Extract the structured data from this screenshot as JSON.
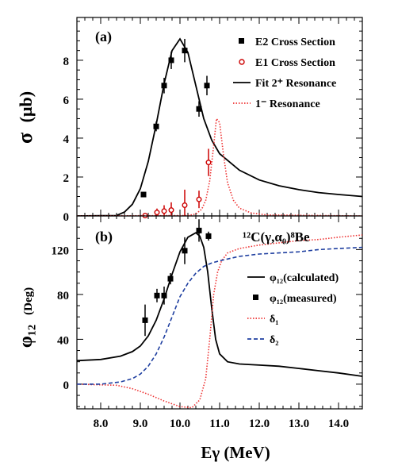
{
  "chart_data": [
    {
      "type": "scatter",
      "panel_label": "(a)",
      "xlabel": "Eγ (MeV)",
      "ylabel_main": "σ",
      "ylabel_unit": "(μb)",
      "xlim": [
        7.4,
        14.6
      ],
      "ylim": [
        0,
        10.2
      ],
      "xticks": [
        8.0,
        9.0,
        10.0,
        11.0,
        12.0,
        13.0,
        14.0
      ],
      "yticks": [
        0,
        2,
        4,
        6,
        8
      ],
      "legend_position": "top-right",
      "series": [
        {
          "name": "E2 Cross Section",
          "kind": "points",
          "marker": "square",
          "color": "#000000",
          "x": [
            9.08,
            9.4,
            9.6,
            9.78,
            10.12,
            10.48,
            10.68
          ],
          "y": [
            1.1,
            4.6,
            6.7,
            8.0,
            8.5,
            5.5,
            6.7
          ],
          "yerr": [
            0.1,
            0.25,
            0.4,
            0.45,
            0.6,
            0.4,
            0.5
          ]
        },
        {
          "name": "E1 Cross Section",
          "kind": "points",
          "marker": "open-circle",
          "color": "#cc0000",
          "x": [
            9.12,
            9.42,
            9.6,
            9.78,
            10.12,
            10.48,
            10.72
          ],
          "y": [
            0.02,
            0.18,
            0.25,
            0.3,
            0.55,
            0.85,
            2.75
          ],
          "yerr": [
            0.05,
            0.2,
            0.3,
            0.4,
            0.8,
            0.45,
            0.7
          ]
        },
        {
          "name": "Fit 2⁺ Resonance",
          "kind": "line",
          "style": "solid",
          "color": "#000000",
          "x": [
            7.4,
            8.4,
            8.6,
            8.8,
            9.0,
            9.2,
            9.4,
            9.6,
            9.8,
            10.0,
            10.2,
            10.4,
            10.6,
            10.8,
            11.0,
            11.5,
            12.0,
            12.5,
            13.0,
            13.5,
            14.0,
            14.6
          ],
          "y": [
            0,
            0.02,
            0.2,
            0.6,
            1.4,
            2.8,
            4.7,
            6.8,
            8.5,
            9.1,
            8.4,
            6.7,
            5.0,
            3.9,
            3.2,
            2.35,
            1.85,
            1.55,
            1.35,
            1.2,
            1.1,
            1.0
          ]
        },
        {
          "name": "1⁻ Resonance",
          "kind": "line",
          "style": "dotted",
          "color": "#ee3333",
          "x": [
            7.4,
            10.2,
            10.4,
            10.55,
            10.65,
            10.75,
            10.85,
            10.92,
            11.0,
            11.1,
            11.2,
            11.35,
            11.5,
            11.8,
            12.2,
            14.6
          ],
          "y": [
            0,
            0.02,
            0.1,
            0.35,
            0.8,
            1.8,
            3.6,
            5.0,
            4.8,
            3.1,
            1.7,
            0.8,
            0.4,
            0.15,
            0.05,
            0.0
          ]
        }
      ]
    },
    {
      "type": "scatter",
      "panel_label": "(b)",
      "annotation": "¹²C(γ,α₀)⁸Be",
      "xlabel": "Eγ (MeV)",
      "ylabel_main": "φ₁₂",
      "ylabel_unit": "(Deg)",
      "xlim": [
        7.4,
        14.6
      ],
      "ylim": [
        -22,
        150
      ],
      "xticks": [
        8.0,
        9.0,
        10.0,
        11.0,
        12.0,
        13.0,
        14.0
      ],
      "yticks": [
        0,
        40,
        80,
        120
      ],
      "legend_position": "right",
      "series": [
        {
          "name": "φ₁₂(calculated)",
          "kind": "line",
          "style": "solid",
          "color": "#000000",
          "x": [
            7.4,
            8.0,
            8.5,
            8.8,
            9.0,
            9.2,
            9.4,
            9.6,
            9.8,
            10.0,
            10.2,
            10.4,
            10.5,
            10.6,
            10.7,
            10.8,
            10.9,
            11.0,
            11.2,
            11.5,
            12.0,
            12.5,
            13.0,
            13.5,
            14.0,
            14.6
          ],
          "y": [
            21,
            22,
            25,
            29,
            34,
            43,
            57,
            76,
            98,
            118,
            131,
            135,
            132,
            122,
            100,
            68,
            40,
            27,
            20,
            18,
            17,
            16,
            14,
            12,
            10,
            7
          ]
        },
        {
          "name": "φ₁₂(measured)",
          "kind": "points",
          "marker": "square",
          "color": "#000000",
          "x": [
            9.12,
            9.42,
            9.6,
            9.76,
            10.12,
            10.48,
            10.72
          ],
          "y": [
            57,
            79,
            79,
            94,
            119,
            137,
            132
          ],
          "yerr": [
            14,
            6,
            8,
            5,
            12,
            10,
            4
          ]
        },
        {
          "name": "δ₁",
          "kind": "line",
          "style": "dotted",
          "color": "#ee3333",
          "x": [
            7.4,
            8.4,
            8.8,
            9.2,
            9.6,
            10.0,
            10.3,
            10.5,
            10.65,
            10.75,
            10.85,
            10.95,
            11.05,
            11.2,
            11.5,
            12.0,
            12.5,
            13.0,
            13.5,
            14.0,
            14.6
          ],
          "y": [
            0,
            -1,
            -4,
            -9,
            -15,
            -20,
            -21,
            -14,
            5,
            40,
            80,
            100,
            110,
            117,
            121,
            124,
            126,
            128,
            129,
            131,
            133
          ]
        },
        {
          "name": "δ₂",
          "kind": "line",
          "style": "dashed",
          "color": "#1f3fa0",
          "x": [
            7.4,
            8.0,
            8.5,
            8.8,
            9.0,
            9.2,
            9.4,
            9.6,
            9.8,
            10.0,
            10.2,
            10.4,
            10.6,
            10.8,
            11.0,
            11.5,
            12.0,
            12.5,
            13.0,
            13.5,
            14.0,
            14.6
          ],
          "y": [
            0,
            0,
            2,
            5,
            9,
            16,
            27,
            42,
            60,
            78,
            90,
            99,
            105,
            108,
            110,
            114,
            116,
            117,
            118,
            120,
            121,
            122
          ]
        }
      ]
    }
  ]
}
